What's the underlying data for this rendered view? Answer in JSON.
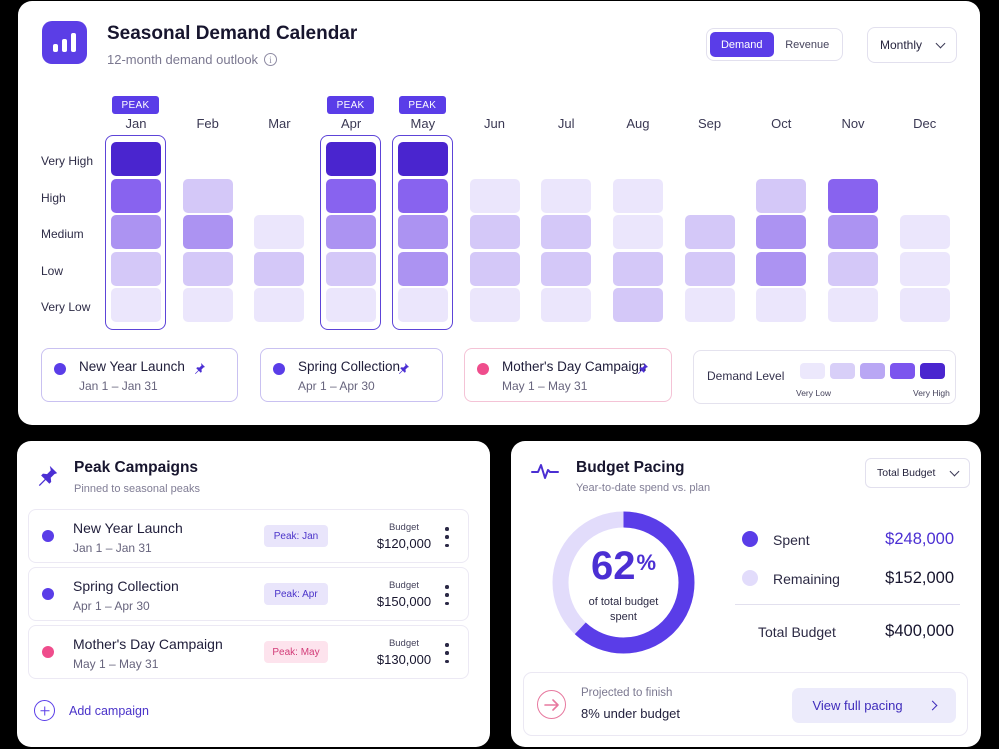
{
  "header": {
    "title": "Seasonal Demand Calendar",
    "subtitle": "12-month demand outlook",
    "toggle": {
      "options": [
        "Demand",
        "Revenue"
      ],
      "selected": "Demand"
    },
    "period_select": "Monthly"
  },
  "calendar": {
    "levels": [
      "Very High",
      "High",
      "Medium",
      "Low",
      "Very Low"
    ],
    "peak_label": "PEAK",
    "months": [
      {
        "label": "Jan",
        "peak": true,
        "cells": [
          "very-high",
          "high",
          "medium",
          "low",
          "very-low"
        ]
      },
      {
        "label": "Feb",
        "peak": false,
        "cells": [
          null,
          "low",
          "medium",
          "low",
          "very-low"
        ]
      },
      {
        "label": "Mar",
        "peak": false,
        "cells": [
          null,
          null,
          "very-low",
          "low",
          "very-low"
        ]
      },
      {
        "label": "Apr",
        "peak": true,
        "cells": [
          "very-high",
          "high",
          "medium",
          "low",
          "very-low"
        ]
      },
      {
        "label": "May",
        "peak": true,
        "cells": [
          "very-high",
          "high",
          "medium",
          "medium",
          "very-low"
        ]
      },
      {
        "label": "Jun",
        "peak": false,
        "cells": [
          null,
          "very-low",
          "low",
          "low",
          "very-low"
        ]
      },
      {
        "label": "Jul",
        "peak": false,
        "cells": [
          null,
          "very-low",
          "low",
          "low",
          "very-low"
        ]
      },
      {
        "label": "Aug",
        "peak": false,
        "cells": [
          null,
          "very-low",
          "very-low",
          "low",
          "low"
        ]
      },
      {
        "label": "Sep",
        "peak": false,
        "cells": [
          null,
          null,
          "low",
          "low",
          "very-low"
        ]
      },
      {
        "label": "Oct",
        "peak": false,
        "cells": [
          null,
          "low",
          "medium",
          "medium",
          "very-low"
        ]
      },
      {
        "label": "Nov",
        "peak": false,
        "cells": [
          null,
          "high",
          "medium",
          "low",
          "very-low"
        ]
      },
      {
        "label": "Dec",
        "peak": false,
        "cells": [
          null,
          null,
          "very-low",
          "very-low",
          "very-low"
        ]
      }
    ],
    "level_colors": {
      "very-high": "#4a25cf",
      "high": "#8863ef",
      "medium": "#ac93f2",
      "low": "#d4c8f8",
      "very-low": "#ebe6fc"
    }
  },
  "pinned_chips": [
    {
      "name": "New Year Launch",
      "dates": "Jan 1 – Jan 31",
      "dot_color": "#5a3de8",
      "border_color": "#c9c1f1"
    },
    {
      "name": "Spring Collection",
      "dates": "Apr 1 – Apr 30",
      "dot_color": "#5a3de8",
      "border_color": "#c9c1f1"
    },
    {
      "name": "Mother's Day Campaign",
      "dates": "May 1 – May 31",
      "dot_color": "#ef4d8c",
      "border_color": "#f4c3d6"
    }
  ],
  "legend": {
    "title": "Demand Level",
    "low_label": "Very Low",
    "high_label": "Very High",
    "colors": [
      "#ece8fc",
      "#d8cff8",
      "#b9a7f4",
      "#7c55ee",
      "#4a25cf"
    ]
  },
  "campaigns": {
    "title": "Peak Campaigns",
    "subtitle": "Pinned to seasonal peaks",
    "budget_label": "Budget",
    "rows": [
      {
        "name": "New Year Launch",
        "dates": "Jan 1 – Jan 31",
        "tag": "Peak: Jan",
        "budget": "$120,000",
        "dot_color": "#5a3de8",
        "tag_bg": "#e9e5fb",
        "tag_color": "#4a33c9"
      },
      {
        "name": "Spring Collection",
        "dates": "Apr 1 – Apr 30",
        "tag": "Peak: Apr",
        "budget": "$150,000",
        "dot_color": "#5a3de8",
        "tag_bg": "#e9e5fb",
        "tag_color": "#4a33c9"
      },
      {
        "name": "Mother's Day Campaign",
        "dates": "May 1 – May 31",
        "tag": "Peak: May",
        "budget": "$130,000",
        "dot_color": "#ef4d8c",
        "tag_bg": "#fde3ed",
        "tag_color": "#d23c78"
      }
    ],
    "add_label": "Add campaign"
  },
  "budget": {
    "title": "Budget Pacing",
    "subtitle": "Year-to-date spend vs. plan",
    "select": "Total Budget",
    "percent": 62,
    "percent_text": "62",
    "percent_sign": "%",
    "caption": "of total budget spent",
    "spent_label": "Spent",
    "spent_value": "$248,000",
    "remaining_label": "Remaining",
    "remaining_value": "$152,000",
    "total_label": "Total Budget",
    "total_value": "$400,000",
    "projection_label": "Projected to finish",
    "projection_value": "8% under budget",
    "view_button": "View full pacing",
    "spent_color": "#5a3de8",
    "remaining_color": "#e2dcfb"
  }
}
